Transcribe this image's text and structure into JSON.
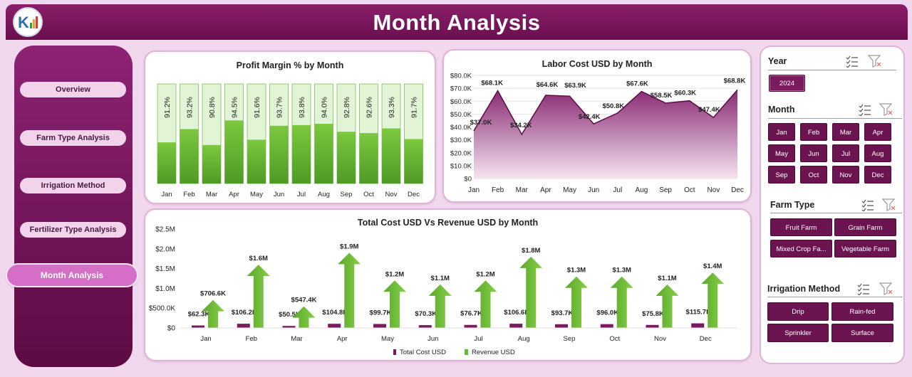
{
  "header": {
    "title": "Month Analysis"
  },
  "colors": {
    "brand": "#6a0f4e",
    "accent": "#d46ec6",
    "green": "#6bb52c",
    "light_green": "#e2f5d8",
    "purple": "#7a1a5f"
  },
  "sidebar": {
    "items": [
      {
        "label": "Overview"
      },
      {
        "label": "Farm Type Analysis"
      },
      {
        "label": "Irrigation Method"
      },
      {
        "label": "Fertilizer Type Analysis"
      },
      {
        "label": "Month Analysis"
      }
    ]
  },
  "charts": {
    "profit_title": "Profit Margin % by Month",
    "labor_title": "Labor Cost USD by Month",
    "cost_title": "Total Cost USD Vs Revenue USD by Month"
  },
  "chart_data": [
    {
      "type": "bar",
      "title": "Profit Margin % by Month",
      "categories": [
        "Jan",
        "Feb",
        "Mar",
        "Apr",
        "May",
        "Jun",
        "Jul",
        "Aug",
        "Sep",
        "Oct",
        "Nov",
        "Dec"
      ],
      "values": [
        91.2,
        93.2,
        90.8,
        94.5,
        91.6,
        93.7,
        93.8,
        94.0,
        92.8,
        92.6,
        93.3,
        91.7
      ],
      "labels": [
        "91.2%",
        "93.2%",
        "90.8%",
        "94.5%",
        "91.6%",
        "93.7%",
        "93.8%",
        "94.0%",
        "92.8%",
        "92.6%",
        "93.3%",
        "91.7%"
      ]
    },
    {
      "type": "area",
      "title": "Labor Cost USD by Month",
      "categories": [
        "Jan",
        "Feb",
        "Mar",
        "Apr",
        "May",
        "Jun",
        "Jul",
        "Aug",
        "Sep",
        "Oct",
        "Nov",
        "Dec"
      ],
      "values": [
        37000,
        68100,
        34200,
        64600,
        63900,
        42400,
        50800,
        67600,
        58500,
        60300,
        47400,
        68800
      ],
      "labels": [
        "$37.0K",
        "$68.1K",
        "$34.2K",
        "$64.6K",
        "$63.9K",
        "$42.4K",
        "$50.8K",
        "$67.6K",
        "$58.5K",
        "$60.3K",
        "$47.4K",
        "$68.8K"
      ],
      "ylim": [
        0,
        80000
      ],
      "yticks": [
        "$0",
        "$10.0K",
        "$20.0K",
        "$30.0K",
        "$40.0K",
        "$50.0K",
        "$60.0K",
        "$70.0K",
        "$80.0K"
      ],
      "grid": true
    },
    {
      "type": "bar",
      "title": "Total Cost USD Vs Revenue USD by Month",
      "categories": [
        "Jan",
        "Feb",
        "Mar",
        "Apr",
        "May",
        "Jun",
        "Jul",
        "Aug",
        "Sep",
        "Oct",
        "Nov",
        "Dec"
      ],
      "series": [
        {
          "name": "Total Cost USD",
          "values": [
            62300,
            106200,
            50500,
            104800,
            99700,
            70300,
            76700,
            106600,
            93700,
            96000,
            75800,
            115700
          ],
          "labels": [
            "$62.3K",
            "$106.2K",
            "$50.5K",
            "$104.8K",
            "$99.7K",
            "$70.3K",
            "$76.7K",
            "$106.6K",
            "$93.7K",
            "$96.0K",
            "$75.8K",
            "$115.7K"
          ]
        },
        {
          "name": "Revenue USD",
          "values": [
            706600,
            1600000,
            547400,
            1900000,
            1200000,
            1100000,
            1200000,
            1800000,
            1300000,
            1300000,
            1100000,
            1400000
          ],
          "labels": [
            "$706.6K",
            "$1.6M",
            "$547.4K",
            "$1.9M",
            "$1.2M",
            "$1.1M",
            "$1.2M",
            "$1.8M",
            "$1.3M",
            "$1.3M",
            "$1.1M",
            "$1.4M"
          ]
        }
      ],
      "ylim": [
        0,
        2500000
      ],
      "yticks": [
        "$0",
        "$500.0K",
        "$1.0M",
        "$1.5M",
        "$2.0M",
        "$2.5M"
      ],
      "legend": "bottom"
    }
  ],
  "slicers": {
    "year": {
      "title": "Year",
      "options": [
        "2024"
      ]
    },
    "month": {
      "title": "Month",
      "options": [
        "Jan",
        "Feb",
        "Mar",
        "Apr",
        "May",
        "Jun",
        "Jul",
        "Aug",
        "Sep",
        "Oct",
        "Nov",
        "Dec"
      ]
    },
    "farm_type": {
      "title": "Farm Type",
      "options": [
        "Fruit Farm",
        "Grain Farm",
        "Mixed Crop Fa...",
        "Vegetable Farm"
      ]
    },
    "irrigation": {
      "title": "Irrigation Method",
      "options": [
        "Drip",
        "Rain-fed",
        "Sprinkler",
        "Surface"
      ]
    }
  }
}
